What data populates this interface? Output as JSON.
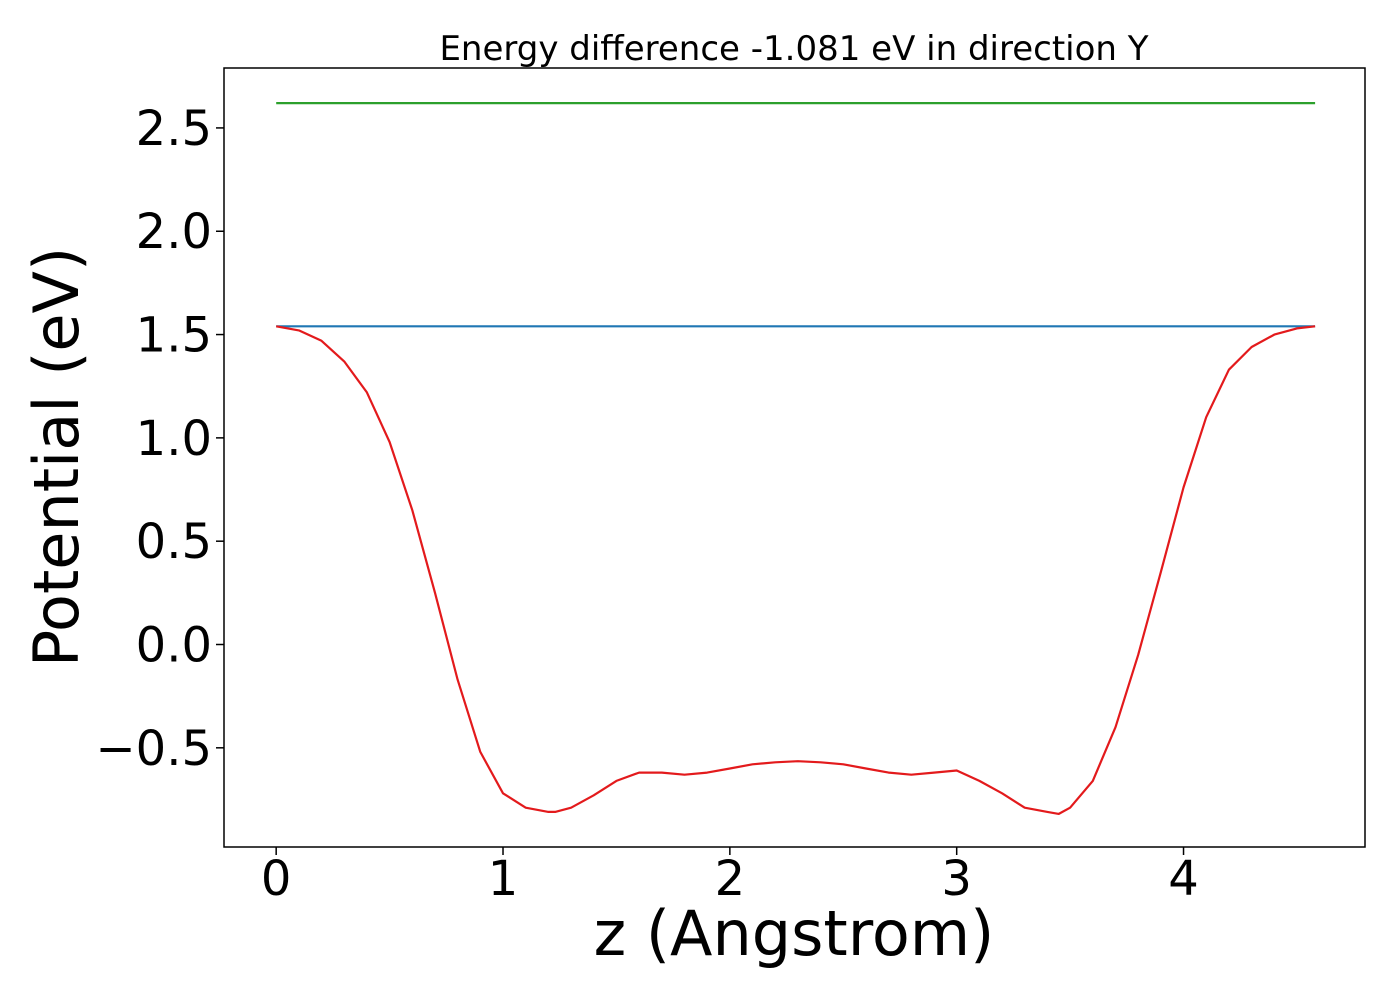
{
  "chart_data": {
    "type": "line",
    "title": "Energy difference -1.081 eV in direction Y",
    "xlabel": "z (Angstrom)",
    "ylabel": "Potential (eV)",
    "xlim": [
      -0.23,
      4.8
    ],
    "ylim": [
      -0.98,
      2.79
    ],
    "grid": false,
    "legend": "none",
    "x_ticks": [
      {
        "value": 0,
        "label": "0"
      },
      {
        "value": 1,
        "label": "1"
      },
      {
        "value": 2,
        "label": "2"
      },
      {
        "value": 3,
        "label": "3"
      },
      {
        "value": 4,
        "label": "4"
      }
    ],
    "y_ticks": [
      {
        "value": -0.5,
        "label": "−0.5"
      },
      {
        "value": 0.0,
        "label": "0.0"
      },
      {
        "value": 0.5,
        "label": "0.5"
      },
      {
        "value": 1.0,
        "label": "1.0"
      },
      {
        "value": 1.5,
        "label": "1.5"
      },
      {
        "value": 2.0,
        "label": "2.0"
      },
      {
        "value": 2.5,
        "label": "2.5"
      }
    ],
    "series": [
      {
        "color": "#2ca02c",
        "x": [
          0,
          4.58
        ],
        "y": [
          2.62,
          2.62
        ]
      },
      {
        "color": "#1f77b4",
        "x": [
          0,
          4.58
        ],
        "y": [
          1.54,
          1.54
        ]
      },
      {
        "color": "#e31a1c",
        "x": [
          0.0,
          0.1,
          0.2,
          0.3,
          0.4,
          0.5,
          0.6,
          0.7,
          0.8,
          0.9,
          1.0,
          1.1,
          1.2,
          1.23,
          1.3,
          1.4,
          1.5,
          1.6,
          1.7,
          1.8,
          1.9,
          2.0,
          2.1,
          2.2,
          2.3,
          2.4,
          2.5,
          2.6,
          2.7,
          2.8,
          2.9,
          3.0,
          3.1,
          3.2,
          3.3,
          3.4,
          3.45,
          3.5,
          3.6,
          3.7,
          3.8,
          3.9,
          4.0,
          4.1,
          4.2,
          4.3,
          4.4,
          4.5,
          4.58
        ],
        "y": [
          1.54,
          1.52,
          1.47,
          1.37,
          1.22,
          0.98,
          0.65,
          0.25,
          -0.17,
          -0.52,
          -0.72,
          -0.79,
          -0.81,
          -0.81,
          -0.79,
          -0.73,
          -0.66,
          -0.62,
          -0.62,
          -0.63,
          -0.62,
          -0.6,
          -0.58,
          -0.57,
          -0.565,
          -0.57,
          -0.58,
          -0.6,
          -0.62,
          -0.63,
          -0.62,
          -0.61,
          -0.66,
          -0.72,
          -0.79,
          -0.81,
          -0.82,
          -0.79,
          -0.66,
          -0.4,
          -0.05,
          0.35,
          0.76,
          1.1,
          1.33,
          1.44,
          1.5,
          1.53,
          1.54
        ]
      }
    ]
  }
}
